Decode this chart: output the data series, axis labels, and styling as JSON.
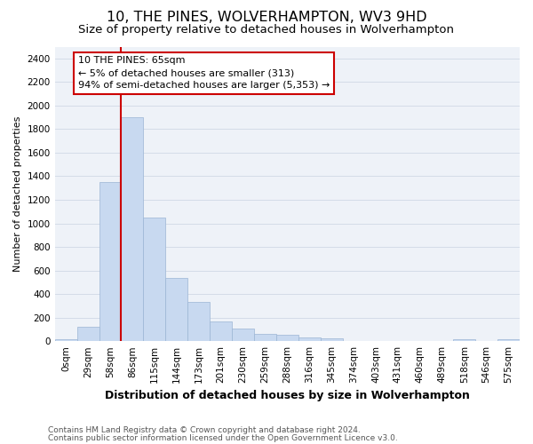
{
  "title": "10, THE PINES, WOLVERHAMPTON, WV3 9HD",
  "subtitle": "Size of property relative to detached houses in Wolverhampton",
  "xlabel": "Distribution of detached houses by size in Wolverhampton",
  "ylabel": "Number of detached properties",
  "footer_line1": "Contains HM Land Registry data © Crown copyright and database right 2024.",
  "footer_line2": "Contains public sector information licensed under the Open Government Licence v3.0.",
  "bar_labels": [
    "0sqm",
    "29sqm",
    "58sqm",
    "86sqm",
    "115sqm",
    "144sqm",
    "173sqm",
    "201sqm",
    "230sqm",
    "259sqm",
    "288sqm",
    "316sqm",
    "345sqm",
    "374sqm",
    "403sqm",
    "431sqm",
    "460sqm",
    "489sqm",
    "518sqm",
    "546sqm",
    "575sqm"
  ],
  "bar_values": [
    15,
    125,
    1350,
    1900,
    1050,
    540,
    335,
    170,
    110,
    60,
    55,
    30,
    25,
    5,
    5,
    5,
    5,
    0,
    15,
    0,
    15
  ],
  "bar_color": "#c8d9f0",
  "bar_edge_color": "#9bb5d4",
  "grid_color": "#d4dce8",
  "vline_color": "#cc0000",
  "vline_x": 2.5,
  "annotation_line1": "10 THE PINES: 65sqm",
  "annotation_line2": "← 5% of detached houses are smaller (313)",
  "annotation_line3": "94% of semi-detached houses are larger (5,353) →",
  "annotation_box_color": "#ffffff",
  "annotation_box_edge_color": "#cc0000",
  "ylim": [
    0,
    2500
  ],
  "yticks": [
    0,
    200,
    400,
    600,
    800,
    1000,
    1200,
    1400,
    1600,
    1800,
    2000,
    2200,
    2400
  ],
  "bg_color": "#eef2f8",
  "title_fontsize": 11.5,
  "subtitle_fontsize": 9.5,
  "ylabel_fontsize": 8,
  "xlabel_fontsize": 9,
  "tick_fontsize": 7.5,
  "annotation_fontsize": 8,
  "footer_fontsize": 6.5
}
